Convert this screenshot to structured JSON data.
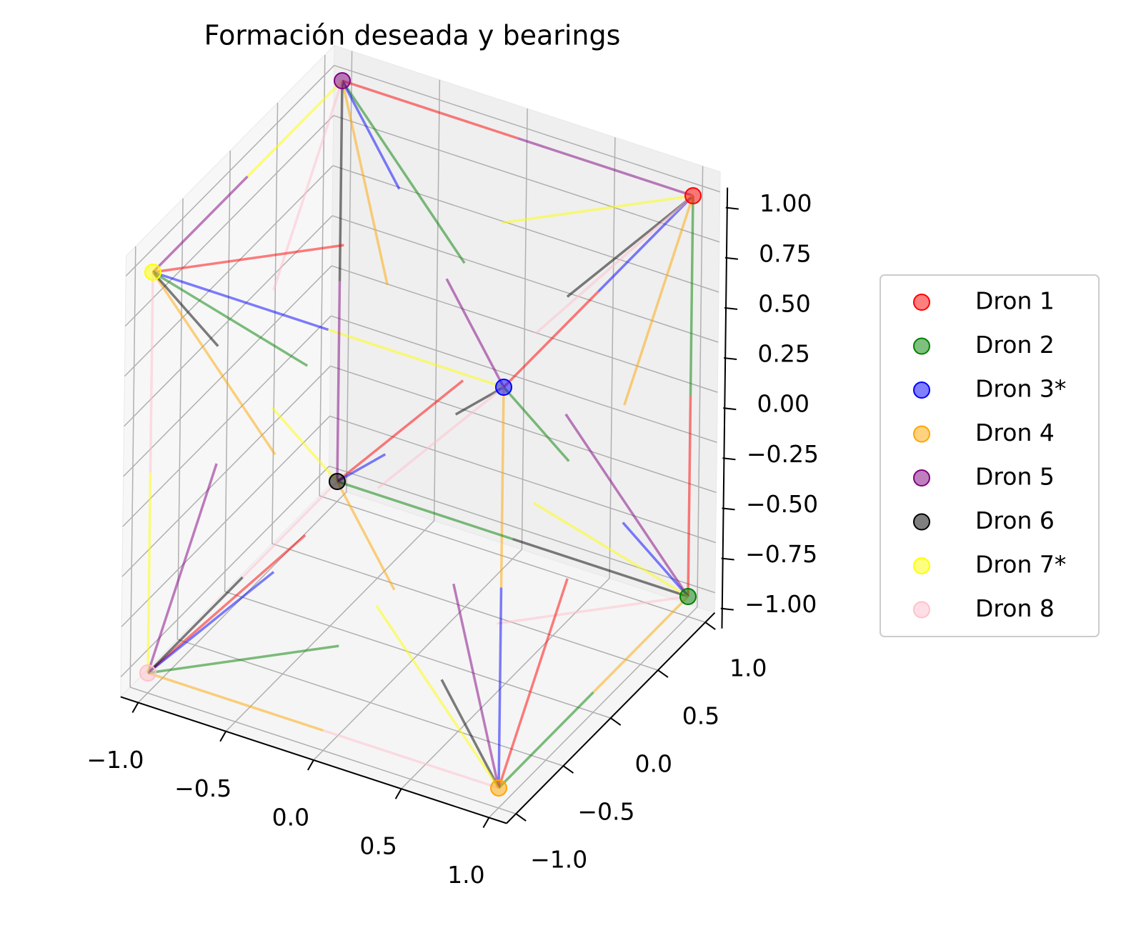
{
  "chart_data": {
    "type": "scatter3d",
    "title": "Formación deseada y bearings",
    "series": [
      {
        "name": "Dron 1",
        "color": "red",
        "x": [
          1
        ],
        "y": [
          1
        ],
        "z": [
          1
        ]
      },
      {
        "name": "Dron 2",
        "color": "green",
        "x": [
          1
        ],
        "y": [
          1
        ],
        "z": [
          -1
        ]
      },
      {
        "name": "Dron 3*",
        "color": "blue",
        "x": [
          1
        ],
        "y": [
          -1
        ],
        "z": [
          1
        ]
      },
      {
        "name": "Dron 4",
        "color": "orange",
        "x": [
          1
        ],
        "y": [
          -1
        ],
        "z": [
          -1
        ]
      },
      {
        "name": "Dron 5",
        "color": "purple",
        "x": [
          -1
        ],
        "y": [
          1
        ],
        "z": [
          1
        ]
      },
      {
        "name": "Dron 6",
        "color": "black",
        "x": [
          -1
        ],
        "y": [
          1
        ],
        "z": [
          -1
        ]
      },
      {
        "name": "Dron 7*",
        "color": "yellow",
        "x": [
          -1
        ],
        "y": [
          -1
        ],
        "z": [
          1
        ]
      },
      {
        "name": "Dron 8",
        "color": "pink",
        "x": [
          -1
        ],
        "y": [
          -1
        ],
        "z": [
          -1
        ]
      }
    ],
    "xlim": [
      -1.1,
      1.1
    ],
    "ylim": [
      -1.1,
      1.1
    ],
    "zlim": [
      -1.1,
      1.1
    ],
    "xticks": [
      {
        "value": -1,
        "label": "−1.0"
      },
      {
        "value": -0.5,
        "label": "−0.5"
      },
      {
        "value": 0,
        "label": "0.0"
      },
      0.5,
      {
        "value": 1,
        "label": "1.0"
      }
    ],
    "yticks": [
      {
        "value": -1,
        "label": "−1.0"
      },
      {
        "value": -0.5,
        "label": "−0.5"
      },
      {
        "value": 0,
        "label": "0.0"
      },
      0.5,
      {
        "value": 1,
        "label": "1.0"
      }
    ],
    "zticks": [
      {
        "value": -1,
        "label": "−1.00"
      },
      {
        "value": -0.75,
        "label": "−0.75"
      },
      {
        "value": -0.5,
        "label": "−0.50"
      },
      {
        "value": -0.25,
        "label": "−0.25"
      },
      {
        "value": 0,
        "label": "0.00"
      },
      0.25,
      {
        "value": 0.5,
        "label": "0.50"
      },
      0.75,
      {
        "value": 1,
        "label": "1.00"
      }
    ],
    "grid": true
  }
}
